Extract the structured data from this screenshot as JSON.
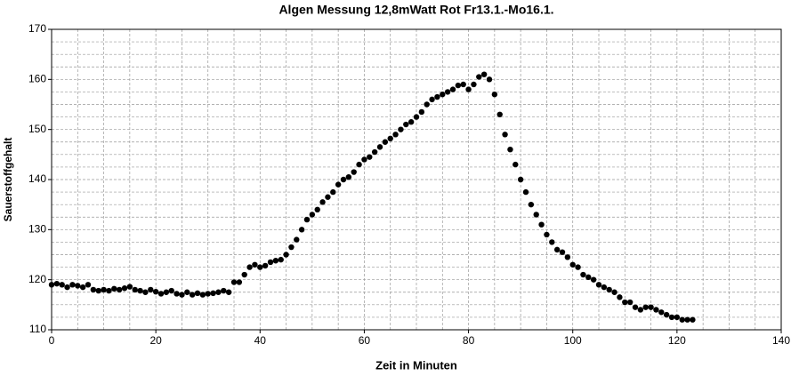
{
  "chart_data": {
    "type": "scatter",
    "title": "Algen Messung 12,8mWatt Rot Fr13.1.-Mo16.1.",
    "xlabel": "Zeit in Minuten",
    "ylabel": "Sauerstoffgehalt",
    "x": [
      0,
      1,
      2,
      3,
      4,
      5,
      6,
      7,
      8,
      9,
      10,
      11,
      12,
      13,
      14,
      15,
      16,
      17,
      18,
      19,
      20,
      21,
      22,
      23,
      24,
      25,
      26,
      27,
      28,
      29,
      30,
      31,
      32,
      33,
      34,
      35,
      36,
      37,
      38,
      39,
      40,
      41,
      42,
      43,
      44,
      45,
      46,
      47,
      48,
      49,
      50,
      51,
      52,
      53,
      54,
      55,
      56,
      57,
      58,
      59,
      60,
      61,
      62,
      63,
      64,
      65,
      66,
      67,
      68,
      69,
      70,
      71,
      72,
      73,
      74,
      75,
      76,
      77,
      78,
      79,
      80,
      81,
      82,
      83,
      84,
      85,
      86,
      87,
      88,
      89,
      90,
      91,
      92,
      93,
      94,
      95,
      96,
      97,
      98,
      99,
      100,
      101,
      102,
      103,
      104,
      105,
      106,
      107,
      108,
      109,
      110,
      111,
      112,
      113,
      114,
      115,
      116,
      117,
      118,
      119,
      120,
      121,
      122,
      123
    ],
    "values": [
      119,
      119.2,
      119,
      118.5,
      119,
      118.8,
      118.5,
      119,
      118,
      117.8,
      118,
      117.8,
      118.2,
      118,
      118.3,
      118.6,
      118,
      117.8,
      117.5,
      118,
      117.6,
      117.2,
      117.5,
      117.8,
      117.2,
      117,
      117.5,
      117,
      117.3,
      117,
      117.2,
      117.3,
      117.5,
      117.8,
      117.5,
      119.5,
      119.5,
      121,
      122.5,
      123,
      122.5,
      122.8,
      123.5,
      123.8,
      124,
      125,
      126.5,
      128,
      130,
      132,
      133,
      134,
      135.5,
      136.5,
      137.5,
      139,
      140,
      140.5,
      141.5,
      143,
      144,
      144.5,
      145.5,
      146.5,
      147.5,
      148.2,
      149,
      150,
      151,
      151.5,
      152.5,
      153.5,
      155,
      156,
      156.5,
      157,
      157.5,
      158,
      158.8,
      159,
      158,
      159,
      160.5,
      161,
      160,
      157,
      153,
      149,
      146,
      143,
      140,
      137.5,
      135,
      133,
      131,
      129,
      127.5,
      126,
      125.5,
      124.5,
      123,
      122.5,
      121,
      120.5,
      120,
      119,
      118.5,
      118,
      117.5,
      116.5,
      115.5,
      115.5,
      114.5,
      114,
      114.5,
      114.5,
      114,
      113.5,
      113,
      112.5,
      112.5,
      112,
      112,
      112
    ],
    "color": "#000000",
    "xlim": [
      0,
      140
    ],
    "xticks": [
      0,
      20,
      40,
      60,
      80,
      100,
      120,
      140
    ],
    "ylim": [
      110,
      170
    ],
    "yticks": [
      110,
      120,
      130,
      140,
      150,
      160,
      170
    ],
    "grid": true
  }
}
